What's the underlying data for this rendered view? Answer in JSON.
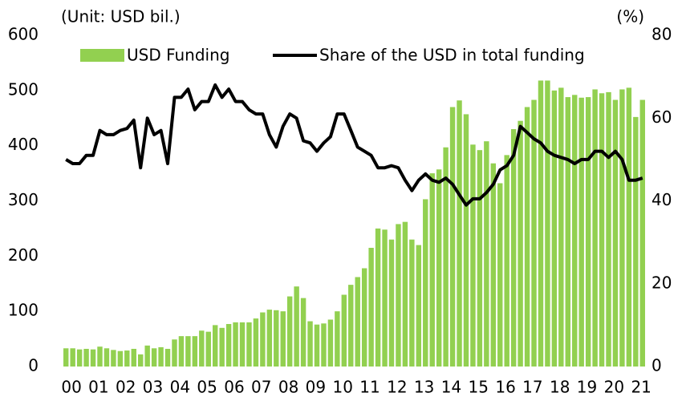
{
  "chart_data": {
    "type": "bar",
    "unit_label": "(Unit: USD bil.)",
    "y2_unit_label": "(%)",
    "categories": [
      "00",
      null,
      null,
      null,
      "01",
      null,
      null,
      null,
      "02",
      null,
      null,
      null,
      "03",
      null,
      null,
      null,
      "04",
      null,
      null,
      null,
      "05",
      null,
      null,
      null,
      "06",
      null,
      null,
      null,
      "07",
      null,
      null,
      null,
      "08",
      null,
      null,
      null,
      "09",
      null,
      null,
      null,
      "10",
      null,
      null,
      null,
      "11",
      null,
      null,
      null,
      "12",
      null,
      null,
      null,
      "13",
      null,
      null,
      null,
      "14",
      null,
      null,
      null,
      "15",
      null,
      null,
      null,
      "16",
      null,
      null,
      null,
      "17",
      null,
      null,
      null,
      "18",
      null,
      null,
      null,
      "19",
      null,
      null,
      null,
      "20",
      null,
      null,
      null,
      "21",
      null
    ],
    "series": [
      {
        "name": "USD Funding",
        "type": "bar",
        "color": "#92d050",
        "values": [
          33,
          33,
          31,
          32,
          31,
          36,
          33,
          30,
          28,
          29,
          32,
          22,
          38,
          33,
          35,
          32,
          49,
          55,
          55,
          55,
          65,
          63,
          75,
          70,
          77,
          80,
          80,
          80,
          87,
          98,
          103,
          102,
          100,
          127,
          145,
          124,
          82,
          76,
          78,
          85,
          100,
          130,
          148,
          162,
          178,
          215,
          250,
          248,
          230,
          258,
          262,
          230,
          220,
          303,
          350,
          357,
          397,
          470,
          482,
          457,
          402,
          392,
          408,
          368,
          332,
          383,
          430,
          445,
          470,
          483,
          518,
          518,
          500,
          505,
          488,
          492,
          487,
          488,
          502,
          495,
          497,
          483,
          502,
          505,
          452,
          483
        ]
      },
      {
        "name": "Share of the USD in total funding",
        "type": "line",
        "axis": "y2",
        "color": "#000000",
        "values": [
          50,
          49,
          49,
          51,
          51,
          57,
          56,
          56,
          57,
          57.5,
          59.5,
          48,
          60,
          56,
          57,
          49,
          65,
          65,
          67,
          62,
          64,
          64,
          68,
          65,
          67,
          64,
          64,
          62,
          61,
          61,
          56,
          53,
          58,
          61,
          60,
          54.5,
          54,
          52,
          54,
          55.5,
          61,
          61,
          57,
          53,
          52,
          51,
          48,
          48,
          48.5,
          48,
          45,
          42.5,
          45,
          46.5,
          45,
          44.5,
          45.5,
          44,
          41.5,
          39,
          40.5,
          40.5,
          42,
          44,
          47.5,
          48.5,
          51,
          58,
          56.5,
          55,
          54,
          52,
          51,
          50.5,
          50,
          49,
          50,
          50,
          52,
          52,
          50.5,
          52,
          50,
          45,
          45,
          45.5
        ]
      }
    ],
    "ylim": [
      0,
      600
    ],
    "yticks": [
      0,
      100,
      200,
      300,
      400,
      500,
      600
    ],
    "y2lim": [
      0,
      80
    ],
    "y2ticks": [
      0,
      20,
      40,
      60,
      80
    ],
    "grid": false
  }
}
